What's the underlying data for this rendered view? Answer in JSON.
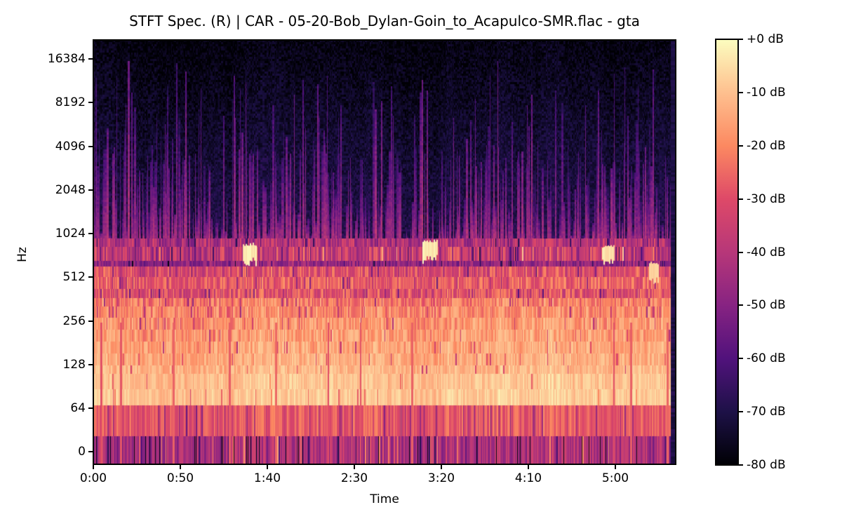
{
  "chart_data": {
    "type": "heatmap",
    "subtype": "stft-spectrogram",
    "title": "STFT Spec. (R) | CAR - 05-20-Bob_Dylan-Goin_to_Acapulco-SMR.flac - gta",
    "xlabel": "Time",
    "ylabel": "Hz",
    "x_ticks": [
      "0:00",
      "0:50",
      "1:40",
      "2:30",
      "3:20",
      "4:10",
      "5:00"
    ],
    "x_tick_seconds": [
      0,
      50,
      100,
      150,
      200,
      250,
      300
    ],
    "duration_seconds": 335,
    "y_ticks": [
      "16384",
      "8192",
      "4096",
      "2048",
      "1024",
      "512",
      "256",
      "128",
      "64",
      "0"
    ],
    "y_scale": "log2",
    "grid": false,
    "colorbar": {
      "ticks": [
        "+0 dB",
        "-10 dB",
        "-20 dB",
        "-30 dB",
        "-40 dB",
        "-50 dB",
        "-60 dB",
        "-70 dB",
        "-80 dB"
      ],
      "max_db": 0,
      "min_db": -80,
      "colormap": "magma",
      "stops": [
        "#000004",
        "#1d1147",
        "#51127c",
        "#872382",
        "#b73779",
        "#de4968",
        "#fc8961",
        "#fec08f",
        "#fcfdbf"
      ]
    },
    "texture": {
      "seed": 987654321,
      "upper": {
        "y1": 283,
        "bgTop": -78,
        "bgBottom": -68,
        "prob": 0.78,
        "tallFrac": 0.32,
        "levelTop": -63,
        "levelBottom": -45,
        "jitter": 6
      },
      "bands": [
        {
          "y0": 283,
          "y1": 295,
          "base": -40,
          "var": 11,
          "dip": 0.05
        },
        {
          "y0": 295,
          "y1": 315,
          "base": -37,
          "var": 12,
          "dip": 0.06,
          "spark": 0.05
        },
        {
          "y0": 315,
          "y1": 323,
          "base": -47,
          "var": 8,
          "dip": 0.05
        },
        {
          "y0": 323,
          "y1": 338,
          "base": -30,
          "var": 10,
          "dip": 0.06
        },
        {
          "y0": 338,
          "y1": 355,
          "base": -26,
          "var": 9,
          "dip": 0.07
        },
        {
          "y0": 355,
          "y1": 368,
          "base": -29,
          "var": 10,
          "dip": 0.08
        },
        {
          "y0": 368,
          "y1": 380,
          "base": -21,
          "var": 8,
          "dip": 0.06
        },
        {
          "y0": 380,
          "y1": 396,
          "base": -19,
          "var": 8,
          "dip": 0.05
        },
        {
          "y0": 396,
          "y1": 413,
          "base": -17,
          "var": 7,
          "dip": 0.05
        },
        {
          "y0": 413,
          "y1": 430,
          "base": -16,
          "var": 7,
          "dip": 0.04
        },
        {
          "y0": 430,
          "y1": 447,
          "base": -14,
          "var": 6,
          "dip": 0.04
        },
        {
          "y0": 447,
          "y1": 464,
          "base": -13,
          "var": 5,
          "dip": 0.03
        },
        {
          "y0": 464,
          "y1": 476,
          "base": -11,
          "var": 5,
          "dip": 0.02
        },
        {
          "y0": 476,
          "y1": 498,
          "base": -9,
          "var": 4,
          "dip": 0.02
        },
        {
          "y0": 498,
          "y1": 521,
          "base": -8,
          "var": 4,
          "dip": 0.02
        },
        {
          "y0": 521,
          "y1": 565,
          "base": -27,
          "var": 7,
          "dip": 0.1
        },
        {
          "y0": 565,
          "y1": 605,
          "base": -42,
          "var": 9,
          "dip": 0.07,
          "spike": 0.08,
          "dark": 0.06
        }
      ],
      "gaps": {
        "count": 12,
        "y0": 403,
        "y1": 605,
        "db": -27
      }
    },
    "highlights": [
      {
        "x": 213,
        "y": 291,
        "w": 20,
        "h": 27,
        "db": -3
      },
      {
        "x": 469,
        "y": 286,
        "w": 22,
        "h": 28,
        "db": -3
      },
      {
        "x": 725,
        "y": 294,
        "w": 17,
        "h": 22,
        "db": -5
      },
      {
        "x": 792,
        "y": 318,
        "w": 14,
        "h": 27,
        "db": -7
      }
    ],
    "end_silence": {
      "w": 7,
      "db": -70
    }
  }
}
